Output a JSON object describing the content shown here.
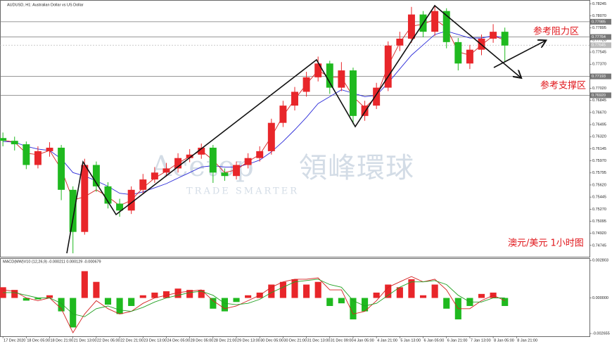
{
  "chart_data": [
    {
      "type": "candlestick",
      "title": "AUDUSD, H1: Australian Dollar vs US Dollar",
      "x": [
        0,
        8,
        16,
        24,
        32,
        40,
        48,
        56,
        64,
        72,
        80,
        88,
        96,
        104,
        112,
        120,
        128,
        136,
        144,
        152,
        160,
        168,
        176,
        184,
        192,
        200,
        208,
        216,
        224,
        232,
        240,
        248,
        256,
        264,
        272,
        280,
        288,
        296,
        304,
        312,
        320,
        328,
        336,
        344
      ],
      "open": [
        0.763,
        0.7626,
        0.7621,
        0.7591,
        0.7611,
        0.7616,
        0.7555,
        0.7494,
        0.7591,
        0.756,
        0.7535,
        0.7525,
        0.7555,
        0.757,
        0.758,
        0.7586,
        0.7601,
        0.7606,
        0.7616,
        0.758,
        0.7575,
        0.7591,
        0.7601,
        0.7611,
        0.7652,
        0.7677,
        0.7697,
        0.7718,
        0.7738,
        0.7703,
        0.7728,
        0.7662,
        0.7677,
        0.7703,
        0.7764,
        0.7774,
        0.7809,
        0.7784,
        0.7814,
        0.7769,
        0.7738,
        0.7758,
        0.7774,
        0.7784
      ],
      "high": [
        0.7638,
        0.7632,
        0.7625,
        0.7618,
        0.7624,
        0.762,
        0.756,
        0.76,
        0.7596,
        0.7566,
        0.7542,
        0.756,
        0.7578,
        0.7588,
        0.7594,
        0.7608,
        0.7614,
        0.7622,
        0.762,
        0.7586,
        0.7596,
        0.7608,
        0.7618,
        0.7658,
        0.7684,
        0.7704,
        0.7726,
        0.7748,
        0.7742,
        0.774,
        0.7732,
        0.7684,
        0.771,
        0.777,
        0.7784,
        0.782,
        0.7814,
        0.7822,
        0.7818,
        0.7775,
        0.7765,
        0.778,
        0.7795,
        0.779
      ],
      "low": [
        0.7618,
        0.7612,
        0.7585,
        0.7586,
        0.7603,
        0.754,
        0.7463,
        0.749,
        0.7552,
        0.7528,
        0.7516,
        0.752,
        0.755,
        0.7565,
        0.7574,
        0.758,
        0.7595,
        0.76,
        0.7565,
        0.7568,
        0.757,
        0.7586,
        0.7596,
        0.7606,
        0.7646,
        0.767,
        0.769,
        0.7712,
        0.7694,
        0.7698,
        0.765,
        0.7655,
        0.7672,
        0.7698,
        0.7756,
        0.7768,
        0.7776,
        0.7778,
        0.776,
        0.7728,
        0.773,
        0.775,
        0.7768,
        0.774
      ],
      "close": [
        0.7626,
        0.7621,
        0.7591,
        0.7611,
        0.7616,
        0.7555,
        0.7494,
        0.7591,
        0.756,
        0.7535,
        0.7525,
        0.7555,
        0.757,
        0.758,
        0.7586,
        0.7601,
        0.7606,
        0.7616,
        0.758,
        0.7575,
        0.7591,
        0.7601,
        0.7611,
        0.7652,
        0.7677,
        0.7697,
        0.7718,
        0.7738,
        0.7703,
        0.7728,
        0.7662,
        0.7677,
        0.7703,
        0.7764,
        0.7774,
        0.7809,
        0.7784,
        0.7814,
        0.7769,
        0.7738,
        0.7758,
        0.7774,
        0.7784,
        0.7764
      ],
      "up_color": "#e8262a",
      "down_color": "#1fb91f",
      "ma": [
        {
          "color": "#2a2ad8",
          "values": [
            0.7625,
            0.7624,
            0.7618,
            0.7614,
            0.7612,
            0.76,
            0.758,
            0.7575,
            0.7568,
            0.756,
            0.755,
            0.7548,
            0.7552,
            0.7558,
            0.7564,
            0.7572,
            0.758,
            0.7588,
            0.759,
            0.7588,
            0.7588,
            0.7592,
            0.7598,
            0.761,
            0.7625,
            0.7642,
            0.766,
            0.768,
            0.769,
            0.77,
            0.7695,
            0.769,
            0.7692,
            0.771,
            0.773,
            0.775,
            0.7765,
            0.778,
            0.7785,
            0.778,
            0.7775,
            0.7775,
            0.7778,
            0.7775
          ]
        },
        {
          "color": "#d42020",
          "values": [
            0.7627,
            0.7624,
            0.7608,
            0.7606,
            0.7612,
            0.7585,
            0.754,
            0.7545,
            0.7555,
            0.7545,
            0.7532,
            0.754,
            0.7558,
            0.7572,
            0.7582,
            0.7594,
            0.7603,
            0.7612,
            0.7598,
            0.758,
            0.7584,
            0.7596,
            0.7606,
            0.7632,
            0.7662,
            0.7686,
            0.7708,
            0.7728,
            0.7718,
            0.7718,
            0.769,
            0.7674,
            0.769,
            0.7735,
            0.7768,
            0.7792,
            0.7795,
            0.7802,
            0.779,
            0.7755,
            0.775,
            0.7765,
            0.7778,
            0.7772
          ]
        }
      ],
      "levels": [
        0.77985,
        0.77764,
        0.77645,
        0.77193,
        {
          "value": 0.7692,
          "label": "0.76920"
        }
      ],
      "xlim": [
        -2,
        402
      ],
      "ylim": [
        0.7458,
        0.783
      ],
      "yticks": [
        0.78245,
        {
          "value": 0.7807,
          "label": "0.78070"
        },
        0.77895,
        {
          "value": 0.7772,
          "label": "0.77720"
        },
        0.77545,
        {
          "value": 0.7737,
          "label": "0.77370"
        },
        0.77195,
        {
          "value": 0.7702,
          "label": "0.77020"
        },
        0.76845,
        {
          "value": 0.7667,
          "label": "0.76670"
        },
        0.76495,
        {
          "value": 0.7632,
          "label": "0.76320"
        },
        0.76145,
        {
          "value": 0.7597,
          "label": "0.75970"
        },
        0.75795,
        {
          "value": 0.7562,
          "label": "0.75620"
        },
        0.75445,
        {
          "value": 0.7527,
          "label": "0.75270"
        },
        0.75095,
        {
          "value": 0.7492,
          "label": "0.74920"
        },
        0.74745
      ],
      "annotations": [
        "参考阻力区",
        "参考支撑区",
        "澳元/美元  1小时图"
      ],
      "watermark": [
        "Acetop",
        "領峰環球",
        "TRADE SMARTER"
      ]
    },
    {
      "type": "macd",
      "title": "MACD(MW)V10 (12,26,9) -0.000211 0.000129 -0.000679",
      "histogram": [
        0.0008,
        0.0006,
        -0.0002,
        -0.0001,
        0.0002,
        -0.001,
        -0.0022,
        0.002,
        0.0012,
        -0.0005,
        -0.0012,
        -0.0006,
        0.0002,
        0.0004,
        0.0005,
        0.0007,
        0.0006,
        0.0006,
        -0.0008,
        -0.001,
        -0.0003,
        0.0002,
        0.0004,
        0.001,
        0.0012,
        0.0014,
        0.001,
        0.0012,
        -0.0006,
        -0.0004,
        -0.0016,
        -0.001,
        0.0004,
        0.001,
        0.0008,
        0.0014,
        0.0002,
        0.001,
        -0.0008,
        -0.0016,
        -0.0006,
        0.0003,
        0.0004,
        -0.0006
      ],
      "positive_color": "#e8262a",
      "negative_color": "#1fb91f",
      "series": [
        {
          "color": "#d42020",
          "values": [
            0.0006,
            0.0005,
            0.0,
            -0.0002,
            0.0,
            -0.0008,
            -0.0026,
            -0.0012,
            -0.0002,
            -0.0008,
            -0.0012,
            -0.001,
            -0.0004,
            0.0,
            0.0002,
            0.0004,
            0.0005,
            0.0006,
            -0.0002,
            -0.0008,
            -0.0006,
            -0.0002,
            0.0002,
            0.0008,
            0.0012,
            0.0014,
            0.0014,
            0.0015,
            0.0006,
            0.0006,
            -0.0012,
            -0.001,
            -0.0002,
            0.0008,
            0.0012,
            0.0016,
            0.0012,
            0.0014,
            0.0006,
            -0.0008,
            -0.0008,
            -0.0002,
            0.0002,
            -0.0002
          ]
        },
        {
          "color": "#22a022",
          "values": [
            0.0004,
            0.0004,
            0.0002,
            0.0,
            0.0,
            -0.0004,
            -0.0012,
            -0.0014,
            -0.0008,
            -0.0006,
            -0.0009,
            -0.001,
            -0.0007,
            -0.0003,
            0.0,
            0.0002,
            0.0004,
            0.0005,
            0.0002,
            -0.0004,
            -0.0005,
            -0.0004,
            -0.0001,
            0.0004,
            0.0008,
            0.0012,
            0.0013,
            0.0014,
            0.001,
            0.0008,
            -0.0002,
            -0.0006,
            -0.0004,
            0.0002,
            0.0008,
            0.0012,
            0.0012,
            0.0013,
            0.001,
            0.0002,
            -0.0003,
            -0.0003,
            0.0,
            0.0
          ]
        }
      ],
      "ylim": [
        -0.00286,
        0.00297
      ],
      "yticks": [
        0.002803,
        {
          "value": 0,
          "label": "0.000000"
        },
        -0.002655
      ],
      "xticks": [
        {
          "value": 0,
          "label": "17 Dec 2020"
        },
        {
          "value": 16,
          "label": "18 Dec 05:00"
        },
        {
          "value": 32,
          "label": "18 Dec 21:00"
        },
        {
          "value": 48,
          "label": "21 Dec 13:00"
        },
        {
          "value": 64,
          "label": "22 Dec 05:00"
        },
        {
          "value": 80,
          "label": "22 Dec 21:00"
        },
        {
          "value": 96,
          "label": "23 Dec 13:00"
        },
        {
          "value": 112,
          "label": "24 Dec 05:00"
        },
        {
          "value": 128,
          "label": "28 Dec 05:00"
        },
        {
          "value": 144,
          "label": "28 Dec 21:00"
        },
        {
          "value": 160,
          "label": "29 Dec 13:00"
        },
        {
          "value": 176,
          "label": "30 Dec 05:00"
        },
        {
          "value": 192,
          "label": "30 Dec 21:00"
        },
        {
          "value": 208,
          "label": "31 Dec 13:00"
        },
        {
          "value": 224,
          "label": "31 Dec 09:00"
        },
        {
          "value": 240,
          "label": "4 Jan 05:00"
        },
        {
          "value": 256,
          "label": "4 Jan 21:00"
        },
        {
          "value": 272,
          "label": "5 Jan 13:00"
        },
        {
          "value": 288,
          "label": "6 Jan 05:00"
        },
        {
          "value": 304,
          "label": "6 Jan 21:00"
        },
        {
          "value": 320,
          "label": "7 Jan 13:00"
        },
        {
          "value": 336,
          "label": "8 Jan 05:00"
        },
        {
          "value": 352,
          "label": "8 Jan 21:00"
        }
      ]
    }
  ]
}
